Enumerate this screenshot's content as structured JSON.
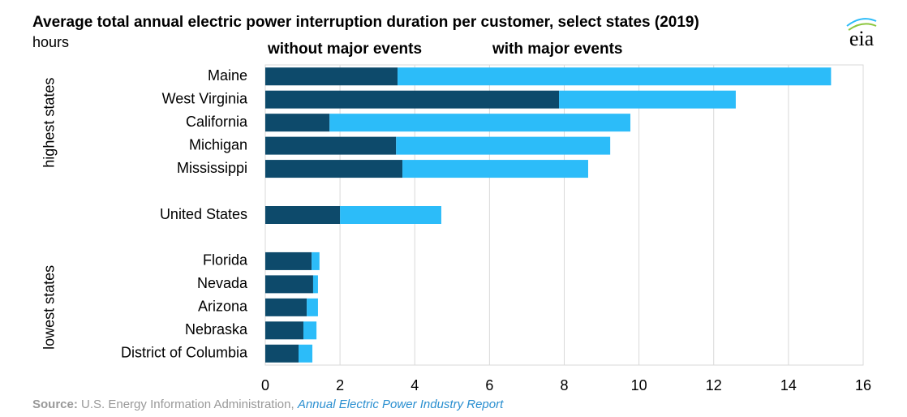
{
  "chart_data": {
    "type": "stacked_barh",
    "title": "Average total annual electric power interruption duration per customer, select states (2019)",
    "subtitle": "hours",
    "logo": "eia",
    "categories": [
      "Maine",
      "West Virginia",
      "California",
      "Michigan",
      "Mississippi",
      null,
      "United States",
      null,
      "Florida",
      "Nevada",
      "Arizona",
      "Nebraska",
      "District of Columbia"
    ],
    "series": [
      {
        "name": "without major events",
        "color": "#0d4a6b",
        "values": [
          3.54,
          7.86,
          1.72,
          3.5,
          3.67,
          null,
          2.0,
          null,
          1.24,
          1.28,
          1.11,
          1.02,
          0.89
        ]
      },
      {
        "name": "with major events",
        "color": "#2cbcf9",
        "values": [
          11.6,
          4.73,
          8.05,
          5.73,
          4.97,
          null,
          2.71,
          null,
          0.21,
          0.13,
          0.3,
          0.35,
          0.37
        ]
      }
    ],
    "groups": [
      {
        "label": "highest states",
        "from": 0,
        "to": 4
      },
      {
        "label": "lowest states",
        "from": 8,
        "to": 12
      }
    ],
    "xlim": [
      0,
      16
    ],
    "xticks": [
      0,
      2,
      4,
      6,
      8,
      10,
      12,
      14,
      16
    ],
    "grid": true,
    "source_label": "Source:",
    "source_text": "U.S. Energy Information Administration,",
    "source_link": "Annual Electric Power Industry Report"
  }
}
